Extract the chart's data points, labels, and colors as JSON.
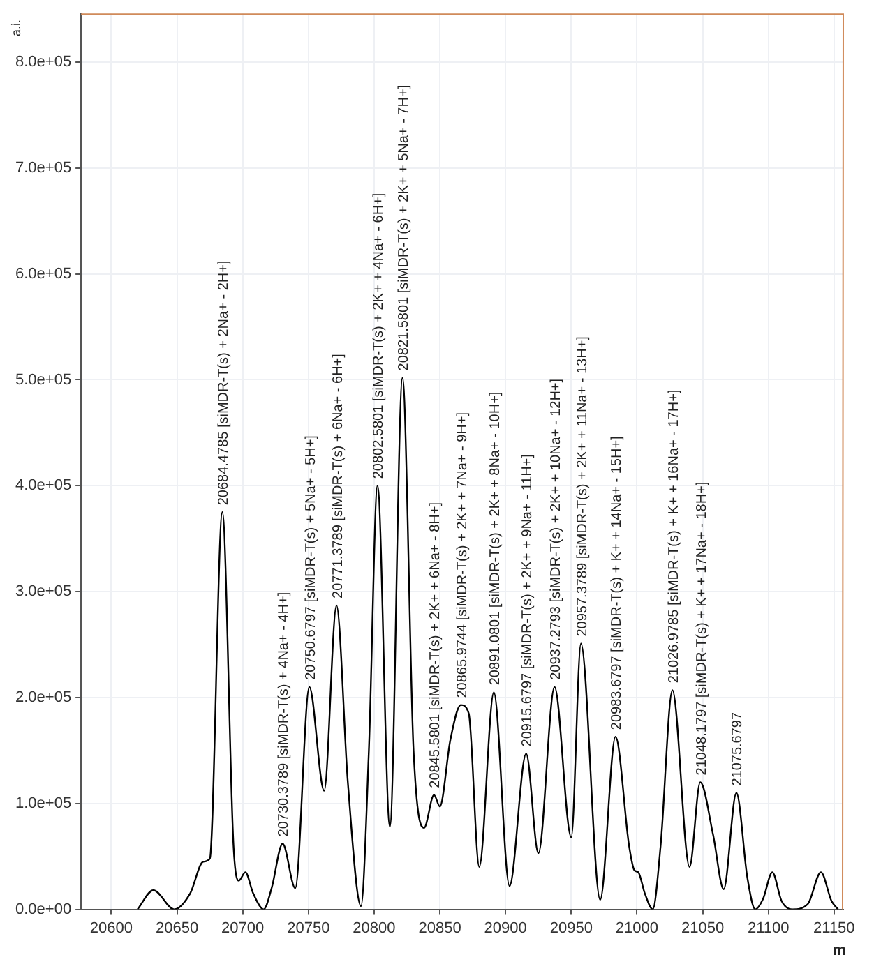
{
  "chart_data": {
    "type": "line",
    "ylabel": "a.i.",
    "xlabel": "m",
    "grid": true,
    "legend": false,
    "xlim": [
      20577,
      21157
    ],
    "xticks": [
      20600,
      20650,
      20700,
      20750,
      20800,
      20850,
      20900,
      20950,
      21000,
      21050,
      21100,
      21150
    ],
    "ylim": [
      0,
      846000
    ],
    "yticks": [
      {
        "value": 0,
        "label": "0.0e+00"
      },
      {
        "value": 100000,
        "label": "1.0e+05"
      },
      {
        "value": 200000,
        "label": "2.0e+05"
      },
      {
        "value": 300000,
        "label": "3.0e+05"
      },
      {
        "value": 400000,
        "label": "4.0e+05"
      },
      {
        "value": 500000,
        "label": "5.0e+05"
      },
      {
        "value": 600000,
        "label": "6.0e+05"
      },
      {
        "value": 700000,
        "label": "7.0e+05"
      },
      {
        "value": 800000,
        "label": "8.0e+05"
      }
    ],
    "series": [
      {
        "color": "#000000",
        "x": [
          20620,
          20632,
          20648,
          20660,
          20670,
          20675,
          20684.4785,
          20693,
          20697,
          20702,
          20708,
          20716,
          20722,
          20730.3789,
          20740,
          20750.6797,
          20762,
          20771.3789,
          20780,
          20790,
          20796,
          20802.5801,
          20812,
          20821.5801,
          20830,
          20838,
          20845.5801,
          20850,
          20858,
          20865.9744,
          20872,
          20880,
          20891.0801,
          20903,
          20915.6797,
          20925,
          20937.2793,
          20950,
          20957.3789,
          20972,
          20983.6797,
          20994,
          20998,
          21001,
          21006,
          21012,
          21018,
          21026.9785,
          21040,
          21048.1797,
          21058,
          21066,
          21075.6797,
          21084,
          21090,
          21096,
          21103,
          21110,
          21118,
          21130,
          21140,
          21148,
          21153
        ],
        "values": [
          0,
          18000,
          0,
          15000,
          45000,
          48000,
          375000,
          60000,
          27000,
          35000,
          15000,
          0,
          20000,
          62000,
          20000,
          210000,
          112000,
          287000,
          120000,
          3000,
          150000,
          400000,
          78000,
          502000,
          150000,
          77000,
          108000,
          97000,
          160000,
          193000,
          185000,
          40000,
          205000,
          22000,
          147000,
          53000,
          210000,
          68000,
          251000,
          9000,
          163000,
          60000,
          37000,
          35000,
          15000,
          0,
          60000,
          207000,
          40000,
          120000,
          70000,
          19000,
          110000,
          30000,
          0,
          10000,
          35000,
          8000,
          0,
          5000,
          35000,
          8000,
          0
        ]
      }
    ],
    "annotations": [
      {
        "text": "20684.4785 [siMDR-T(s) + 2Na+ - 2H+]",
        "x": 20684.4785,
        "y": 375000
      },
      {
        "text": "20730.3789 [siMDR-T(s) + 4Na+ - 4H+]",
        "x": 20730.3789,
        "y": 62000
      },
      {
        "text": "20750.6797 [siMDR-T(s) + 5Na+ - 5H+]",
        "x": 20750.6797,
        "y": 210000
      },
      {
        "text": "20771.3789 [siMDR-T(s) + 6Na+ - 6H+]",
        "x": 20771.3789,
        "y": 287000
      },
      {
        "text": "20802.5801 [siMDR-T(s) + 2K+ + 4Na+ - 6H+]",
        "x": 20802.5801,
        "y": 400000
      },
      {
        "text": "20821.5801 [siMDR-T(s) + 2K+ + 5Na+ - 7H+]",
        "x": 20821.5801,
        "y": 502000
      },
      {
        "text": "20845.5801 [siMDR-T(s) + 2K+ + 6Na+ - 8H+]",
        "x": 20845.5801,
        "y": 108000
      },
      {
        "text": "20865.9744 [siMDR-T(s) + 2K+ + 7Na+ - 9H+]",
        "x": 20865.9744,
        "y": 193000
      },
      {
        "text": "20891.0801 [siMDR-T(s) + 2K+ + 8Na+ - 10H+]",
        "x": 20891.0801,
        "y": 205000
      },
      {
        "text": "20915.6797 [siMDR-T(s) + 2K+ + 9Na+ - 11H+]",
        "x": 20915.6797,
        "y": 147000
      },
      {
        "text": "20937.2793 [siMDR-T(s) + 2K+ + 10Na+ - 12H+]",
        "x": 20937.2793,
        "y": 210000
      },
      {
        "text": "20957.3789 [siMDR-T(s) + 2K+ + 11Na+ - 13H+]",
        "x": 20957.3789,
        "y": 251000
      },
      {
        "text": "20983.6797 [siMDR-T(s) + K+ + 14Na+ - 15H+]",
        "x": 20983.6797,
        "y": 163000
      },
      {
        "text": "21026.9785 [siMDR-T(s) + K+ + 16Na+ - 17H+]",
        "x": 21026.9785,
        "y": 207000
      },
      {
        "text": "21048.1797 [siMDR-T(s) + K+ + 17Na+ - 18H+]",
        "x": 21048.1797,
        "y": 120000
      },
      {
        "text": "21075.6797",
        "x": 21075.6797,
        "y": 110000
      }
    ]
  }
}
